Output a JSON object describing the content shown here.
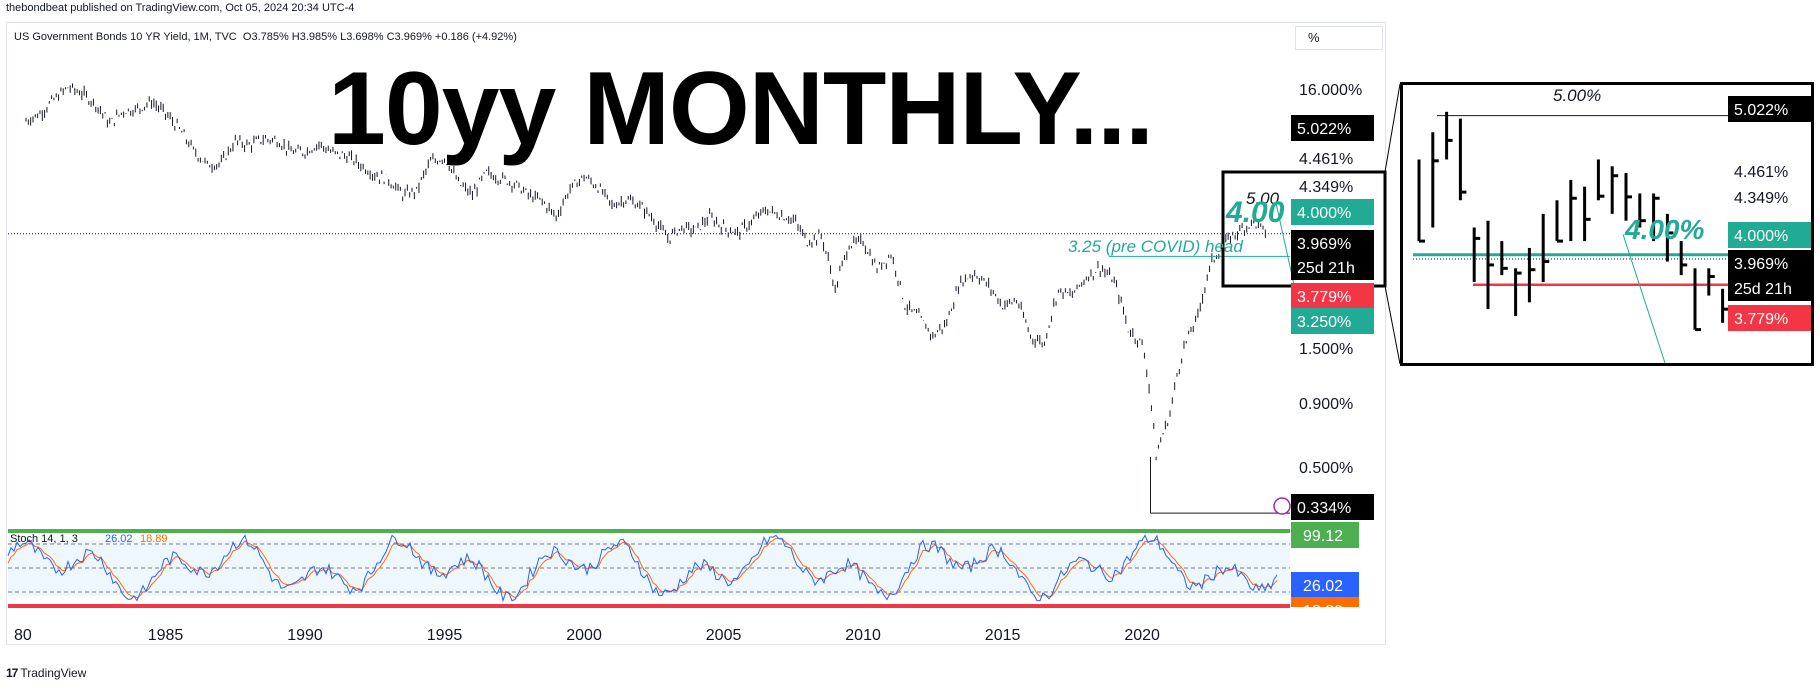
{
  "publisher": "thebondbeat published on TradingView.com, Oct 05, 2024 20:34 UTC-4",
  "symbol": {
    "name": "US Government Bonds 10 YR Yield, 1M, TVC",
    "ohlc": "O3.785% H3.985% L3.698% C3.969% +0.186 (+4.92%)"
  },
  "scale_button": "%",
  "big_title": "10yy MONTHLY...",
  "brand": "TradingView",
  "colors": {
    "green": "#22ab94",
    "red": "#f23645",
    "stoch_k": "#2962ff",
    "stoch_d": "#ff6d00",
    "stoch_band": "#4caf50"
  },
  "chart_data": {
    "type": "bar",
    "scale": "log",
    "x_ticks": [
      "1980",
      "1985",
      "1990",
      "1995",
      "2000",
      "2005",
      "2010",
      "2015",
      "2020"
    ],
    "y_ticks": [
      "16.000%",
      "4.461%",
      "4.349%",
      "3.969%",
      "1.500%",
      "0.900%",
      "0.500%"
    ],
    "price_labels": [
      {
        "text": "5.022%",
        "style": "black"
      },
      {
        "text": "4.000%",
        "style": "green"
      },
      {
        "text": "3.969%",
        "style": "black"
      },
      {
        "text": "25d 21h",
        "style": "black"
      },
      {
        "text": "3.779%",
        "style": "red"
      },
      {
        "text": "3.250%",
        "style": "green"
      },
      {
        "text": "0.334%",
        "style": "black"
      }
    ],
    "annotations": [
      {
        "text": "5.00",
        "style": "black-italic"
      },
      {
        "text": "4.00",
        "style": "green-italic"
      },
      {
        "text": "3.25 (pre COVID) head",
        "style": "green-italic"
      }
    ],
    "series": [
      {
        "name": "10Y yield monthly",
        "x": [
          1980.0,
          1980.5,
          1981.0,
          1981.5,
          1982.0,
          1982.5,
          1983.0,
          1983.5,
          1984.0,
          1984.5,
          1985.0,
          1985.5,
          1986.0,
          1986.5,
          1987.0,
          1987.5,
          1988.0,
          1988.5,
          1989.0,
          1989.5,
          1990.0,
          1990.5,
          1991.0,
          1991.5,
          1992.0,
          1992.5,
          1993.0,
          1993.5,
          1994.0,
          1994.5,
          1995.0,
          1995.5,
          1996.0,
          1996.5,
          1997.0,
          1997.5,
          1998.0,
          1998.5,
          1999.0,
          1999.5,
          2000.0,
          2000.5,
          2001.0,
          2001.5,
          2002.0,
          2002.5,
          2003.0,
          2003.5,
          2004.0,
          2004.5,
          2005.0,
          2005.5,
          2006.0,
          2006.5,
          2007.0,
          2007.5,
          2008.0,
          2008.5,
          2009.0,
          2009.5,
          2010.0,
          2010.5,
          2011.0,
          2011.5,
          2012.0,
          2012.5,
          2013.0,
          2013.5,
          2014.0,
          2014.5,
          2015.0,
          2015.5,
          2016.0,
          2016.5,
          2017.0,
          2017.5,
          2018.0,
          2018.5,
          2019.0,
          2019.5,
          2020.0,
          2020.5,
          2021.0,
          2021.5,
          2022.0,
          2022.5,
          2023.0,
          2023.5,
          2024.0,
          2024.5
        ],
        "y": [
          10.8,
          11.5,
          13.0,
          14.5,
          13.8,
          12.5,
          10.5,
          11.8,
          12.0,
          12.8,
          11.5,
          10.0,
          8.3,
          7.3,
          7.4,
          9.0,
          8.7,
          9.2,
          9.1,
          8.2,
          8.2,
          8.8,
          8.1,
          7.9,
          7.3,
          6.7,
          6.4,
          5.6,
          5.8,
          7.5,
          7.8,
          6.2,
          5.6,
          6.8,
          6.5,
          6.2,
          5.6,
          5.3,
          4.6,
          5.9,
          6.6,
          6.0,
          5.1,
          5.4,
          5.1,
          4.5,
          3.8,
          4.2,
          4.1,
          4.6,
          4.2,
          4.0,
          4.4,
          4.9,
          4.7,
          4.5,
          3.7,
          3.9,
          2.4,
          3.6,
          3.7,
          2.9,
          3.3,
          2.1,
          1.9,
          1.6,
          1.8,
          2.6,
          2.8,
          2.5,
          2.1,
          2.2,
          1.6,
          1.5,
          2.4,
          2.3,
          2.7,
          2.95,
          2.6,
          1.7,
          1.5,
          0.55,
          0.8,
          1.45,
          1.9,
          3.1,
          3.7,
          4.1,
          4.4,
          3.97
        ]
      }
    ],
    "stochastic": {
      "label": "Stoch 14, 1, 3",
      "k_value": "26.02",
      "d_value": "18.89",
      "levels": [
        "99.12",
        "26.02",
        "18.89"
      ]
    },
    "zoom": {
      "annotations": [
        {
          "text": "5.00%",
          "style": "black-italic"
        },
        {
          "text": "4.00%",
          "style": "green-italic"
        }
      ],
      "price_labels": [
        {
          "text": "5.022%",
          "style": "black"
        },
        {
          "text": "4.461%",
          "style": "plain"
        },
        {
          "text": "4.349%",
          "style": "plain"
        },
        {
          "text": "4.000%",
          "style": "green"
        },
        {
          "text": "3.969%",
          "style": "black"
        },
        {
          "text": "25d 21h",
          "style": "black"
        },
        {
          "text": "3.779%",
          "style": "red"
        }
      ],
      "bars_high": [
        4.7,
        4.9,
        5.05,
        5.0,
        4.2,
        4.25,
        4.1,
        3.9,
        4.05,
        4.3,
        4.4,
        4.55,
        4.5,
        4.7,
        4.65,
        4.6,
        4.45,
        4.45,
        4.3,
        4.1,
        3.9,
        3.9,
        3.75,
        3.98
      ],
      "bars_low": [
        4.1,
        4.2,
        4.7,
        4.4,
        3.8,
        3.6,
        3.85,
        3.55,
        3.65,
        3.8,
        4.1,
        4.1,
        4.1,
        4.4,
        4.3,
        4.25,
        4.2,
        4.1,
        3.95,
        3.85,
        3.45,
        3.7,
        3.5,
        3.7
      ]
    }
  }
}
